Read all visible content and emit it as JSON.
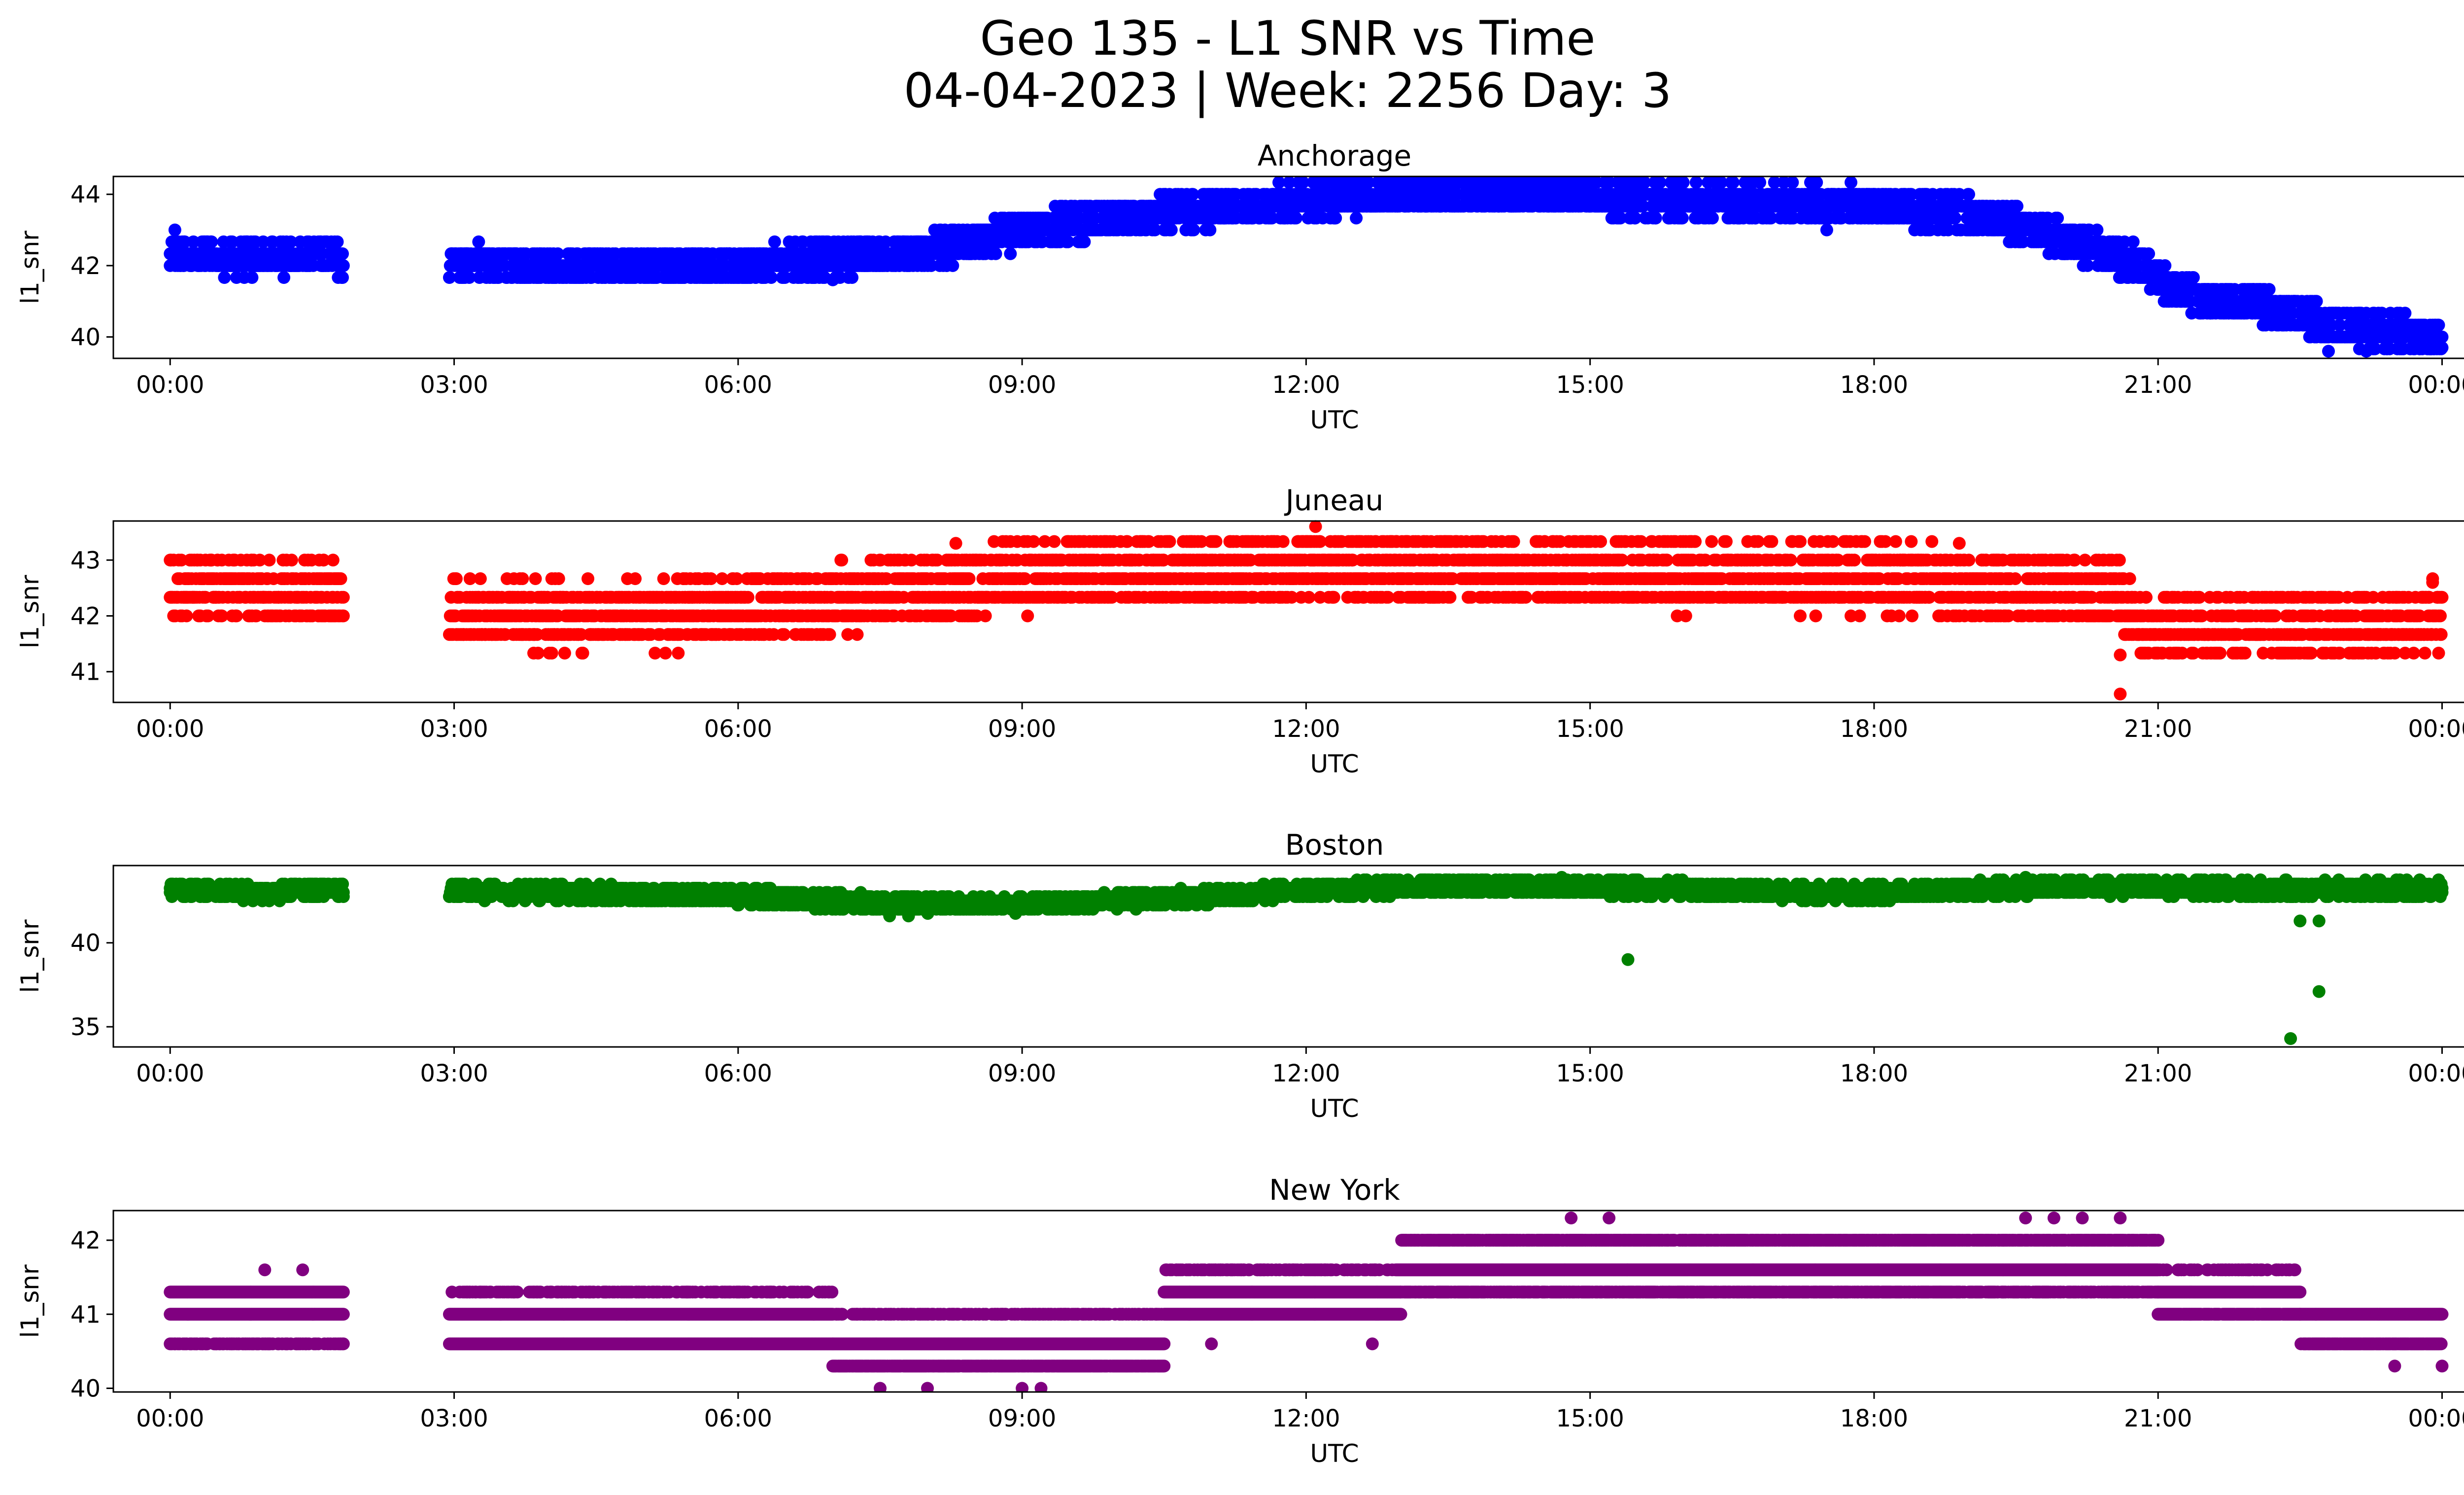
{
  "figure": {
    "title_line1": "Geo 135 - L1 SNR vs Time",
    "title_line2": "04-04-2023 | Week: 2256 Day: 3"
  },
  "chart_data": [
    {
      "type": "scatter",
      "title": "Anchorage",
      "xlabel": "UTC",
      "ylabel": "l1_snr",
      "color": "#0000ff",
      "xlim": [
        -0.6,
        25.2
      ],
      "ylim": [
        39.4,
        44.5
      ],
      "xticks": [
        0,
        3,
        6,
        9,
        12,
        15,
        18,
        21,
        24
      ],
      "xtick_labels": [
        "00:00",
        "03:00",
        "06:00",
        "09:00",
        "12:00",
        "15:00",
        "18:00",
        "21:00",
        "00:00"
      ],
      "yticks": [
        40,
        42,
        44
      ],
      "ytick_labels": [
        "40",
        "42",
        "44"
      ],
      "grid": false,
      "segments": [
        {
          "start_hour": 0.0,
          "end_hour": 1.83,
          "points": [
            [
              0.0,
              42.3
            ],
            [
              0.3,
              42.3
            ],
            [
              0.6,
              42.2
            ],
            [
              0.9,
              42.2
            ],
            [
              1.2,
              42.2
            ],
            [
              1.5,
              42.3
            ],
            [
              1.83,
              42.2
            ]
          ],
          "spread": 0.4
        },
        {
          "start_hour": 2.95,
          "end_hour": 24.0,
          "points": [
            [
              2.95,
              42.1
            ],
            [
              4.0,
              42.0
            ],
            [
              5.0,
              42.0
            ],
            [
              6.0,
              42.0
            ],
            [
              7.0,
              42.2
            ],
            [
              8.0,
              42.4
            ],
            [
              8.5,
              42.7
            ],
            [
              9.0,
              43.0
            ],
            [
              10.0,
              43.3
            ],
            [
              11.0,
              43.6
            ],
            [
              12.0,
              43.8
            ],
            [
              13.0,
              44.0
            ],
            [
              14.0,
              44.0
            ],
            [
              15.0,
              43.9
            ],
            [
              16.0,
              43.8
            ],
            [
              17.0,
              43.8
            ],
            [
              18.0,
              43.7
            ],
            [
              18.7,
              43.5
            ],
            [
              19.3,
              43.3
            ],
            [
              19.8,
              42.9
            ],
            [
              20.3,
              42.5
            ],
            [
              20.8,
              42.0
            ],
            [
              21.2,
              41.3
            ],
            [
              21.6,
              41.0
            ],
            [
              22.0,
              40.9
            ],
            [
              22.6,
              40.5
            ],
            [
              23.0,
              40.3
            ],
            [
              23.5,
              40.1
            ],
            [
              24.0,
              40.0
            ]
          ],
          "spread": 0.45
        }
      ],
      "outliers": [
        [
          0.05,
          43.0
        ],
        [
          7.0,
          41.6
        ],
        [
          17.5,
          43.0
        ],
        [
          19.0,
          44.0
        ],
        [
          22.8,
          39.6
        ],
        [
          23.2,
          39.6
        ],
        [
          21.3,
          41.3
        ],
        [
          24.0,
          39.7
        ]
      ]
    },
    {
      "type": "scatter",
      "title": "Juneau",
      "xlabel": "UTC",
      "ylabel": "l1_snr",
      "color": "#ff0000",
      "xlim": [
        -0.6,
        25.2
      ],
      "ylim": [
        40.45,
        43.7
      ],
      "xticks": [
        0,
        3,
        6,
        9,
        12,
        15,
        18,
        21,
        24
      ],
      "xtick_labels": [
        "00:00",
        "03:00",
        "06:00",
        "09:00",
        "12:00",
        "15:00",
        "18:00",
        "21:00",
        "00:00"
      ],
      "yticks": [
        41,
        42,
        43
      ],
      "ytick_labels": [
        "41",
        "42",
        "43"
      ],
      "grid": false,
      "segments": [
        {
          "start_hour": 0.0,
          "end_hour": 1.83,
          "points": [
            [
              0.0,
              42.5
            ],
            [
              0.9,
              42.5
            ],
            [
              1.83,
              42.4
            ]
          ],
          "spread": 0.5
        },
        {
          "start_hour": 2.95,
          "end_hour": 24.0,
          "points": [
            [
              2.95,
              42.1
            ],
            [
              4.0,
              42.0
            ],
            [
              5.0,
              42.0
            ],
            [
              6.0,
              42.1
            ],
            [
              7.0,
              42.3
            ],
            [
              8.0,
              42.5
            ],
            [
              9.0,
              42.7
            ],
            [
              10.0,
              42.8
            ],
            [
              11.0,
              42.8
            ],
            [
              12.0,
              42.9
            ],
            [
              13.0,
              42.9
            ],
            [
              14.0,
              42.8
            ],
            [
              15.0,
              42.8
            ],
            [
              16.0,
              42.7
            ],
            [
              17.0,
              42.7
            ],
            [
              18.0,
              42.7
            ],
            [
              19.0,
              42.6
            ],
            [
              20.0,
              42.5
            ],
            [
              20.6,
              42.4
            ],
            [
              20.7,
              42.0
            ],
            [
              21.0,
              41.8
            ],
            [
              22.0,
              41.8
            ],
            [
              23.0,
              41.8
            ],
            [
              24.0,
              42.0
            ]
          ],
          "spread": 0.55
        }
      ],
      "outliers": [
        [
          12.1,
          43.6
        ],
        [
          20.6,
          40.6
        ],
        [
          20.6,
          41.3
        ],
        [
          23.9,
          42.6
        ],
        [
          18.9,
          43.3
        ],
        [
          8.3,
          43.3
        ]
      ]
    },
    {
      "type": "scatter",
      "title": "Boston",
      "xlabel": "UTC",
      "ylabel": "l1_snr",
      "color": "#008000",
      "xlim": [
        -0.6,
        25.2
      ],
      "ylim": [
        33.8,
        44.6
      ],
      "xticks": [
        0,
        3,
        6,
        9,
        12,
        15,
        18,
        21,
        24
      ],
      "xtick_labels": [
        "00:00",
        "03:00",
        "06:00",
        "09:00",
        "12:00",
        "15:00",
        "18:00",
        "21:00",
        "00:00"
      ],
      "yticks": [
        35,
        40
      ],
      "ytick_labels": [
        "35",
        "40"
      ],
      "grid": false,
      "segments": [
        {
          "start_hour": 0.0,
          "end_hour": 1.83,
          "points": [
            [
              0.0,
              43.1
            ],
            [
              0.9,
              43.0
            ],
            [
              1.83,
              43.2
            ]
          ],
          "spread": 0.45
        },
        {
          "start_hour": 2.95,
          "end_hour": 24.0,
          "points": [
            [
              2.95,
              43.1
            ],
            [
              4.0,
              43.0
            ],
            [
              5.0,
              42.9
            ],
            [
              6.0,
              42.8
            ],
            [
              7.0,
              42.5
            ],
            [
              8.0,
              42.3
            ],
            [
              9.0,
              42.3
            ],
            [
              10.0,
              42.5
            ],
            [
              11.0,
              42.8
            ],
            [
              12.0,
              43.1
            ],
            [
              13.0,
              43.3
            ],
            [
              14.0,
              43.4
            ],
            [
              15.0,
              43.3
            ],
            [
              16.0,
              43.2
            ],
            [
              17.0,
              43.0
            ],
            [
              18.0,
              43.0
            ],
            [
              19.0,
              43.2
            ],
            [
              20.0,
              43.3
            ],
            [
              21.0,
              43.3
            ],
            [
              22.0,
              43.2
            ],
            [
              23.0,
              43.2
            ],
            [
              24.0,
              43.2
            ]
          ],
          "spread": 0.45
        }
      ],
      "outliers": [
        [
          15.4,
          39.0
        ],
        [
          22.4,
          34.3
        ],
        [
          22.7,
          37.1
        ],
        [
          22.5,
          41.3
        ],
        [
          22.7,
          41.3
        ],
        [
          14.7,
          43.9
        ],
        [
          19.6,
          43.9
        ],
        [
          7.6,
          41.6
        ],
        [
          7.8,
          41.6
        ]
      ]
    },
    {
      "type": "scatter",
      "title": "New York",
      "xlabel": "UTC",
      "ylabel": "l1_snr",
      "color": "#800080",
      "xlim": [
        -0.6,
        25.2
      ],
      "ylim": [
        39.95,
        42.4
      ],
      "xticks": [
        0,
        3,
        6,
        9,
        12,
        15,
        18,
        21,
        24
      ],
      "xtick_labels": [
        "00:00",
        "03:00",
        "06:00",
        "09:00",
        "12:00",
        "15:00",
        "18:00",
        "21:00",
        "00:00"
      ],
      "yticks": [
        40,
        41,
        42
      ],
      "ytick_labels": [
        "40",
        "41",
        "42"
      ],
      "grid": false,
      "levels": [
        40.0,
        40.3,
        40.6,
        41.0,
        41.3,
        41.6,
        42.0,
        42.3
      ],
      "bands": [
        {
          "from": 0.0,
          "to": 1.83,
          "levels": [
            41.0,
            41.3,
            40.6
          ],
          "density": [
            1.0,
            1.0,
            0.45
          ]
        },
        {
          "from": 2.95,
          "to": 7.0,
          "levels": [
            41.0,
            40.6,
            41.3
          ],
          "density": [
            1.0,
            1.0,
            0.35
          ]
        },
        {
          "from": 7.0,
          "to": 10.5,
          "levels": [
            40.6,
            40.3,
            41.0
          ],
          "density": [
            1.0,
            0.9,
            0.4
          ]
        },
        {
          "from": 10.5,
          "to": 13.0,
          "levels": [
            41.0,
            41.3,
            41.6
          ],
          "density": [
            1.0,
            1.0,
            0.4
          ]
        },
        {
          "from": 13.0,
          "to": 21.0,
          "levels": [
            41.6,
            41.3,
            42.0
          ],
          "density": [
            1.0,
            0.75,
            0.75
          ]
        },
        {
          "from": 21.0,
          "to": 22.5,
          "levels": [
            41.3,
            41.0,
            41.6
          ],
          "density": [
            1.0,
            0.9,
            0.3
          ]
        },
        {
          "from": 22.5,
          "to": 24.0,
          "levels": [
            41.0,
            40.6
          ],
          "density": [
            1.0,
            0.9
          ]
        }
      ],
      "outliers": [
        [
          1.0,
          41.6
        ],
        [
          1.4,
          41.6
        ],
        [
          7.5,
          40.0
        ],
        [
          8.0,
          40.0
        ],
        [
          9.0,
          40.0
        ],
        [
          9.2,
          40.0
        ],
        [
          11.0,
          40.6
        ],
        [
          12.7,
          40.6
        ],
        [
          14.8,
          42.3
        ],
        [
          15.2,
          42.3
        ],
        [
          19.6,
          42.3
        ],
        [
          19.9,
          42.3
        ],
        [
          20.2,
          42.3
        ],
        [
          20.6,
          42.3
        ],
        [
          23.5,
          40.3
        ],
        [
          24.0,
          40.3
        ]
      ]
    }
  ]
}
